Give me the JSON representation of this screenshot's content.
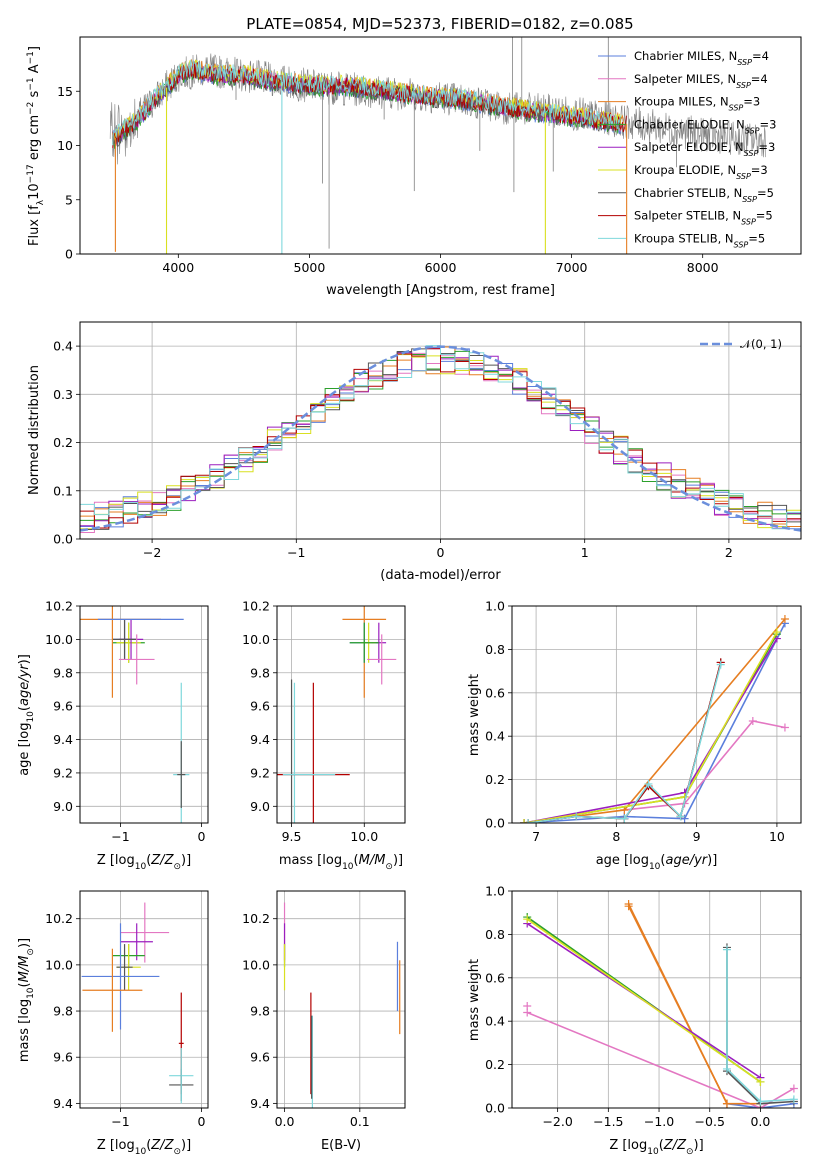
{
  "figure_title": "PLATE=0854, MJD=52373, FIBERID=0182, z=0.085",
  "colors": {
    "chabrier_miles": "#5b7fdc",
    "salpeter_miles": "#e377c2",
    "kroupa_miles": "#e67e22",
    "chabrier_elodie": "#2ca02c",
    "salpeter_elodie": "#9b1fbf",
    "kroupa_elodie": "#d9e021",
    "chabrier_stelib": "#555555",
    "salpeter_stelib": "#b30000",
    "kroupa_stelib": "#7fd8dc",
    "data_gray": "#808080",
    "gaussian": "#6b8fdc"
  },
  "chart_data": [
    {
      "id": "spectrum",
      "type": "line",
      "xlabel": "wavelength [Angstrom, rest frame]",
      "ylabel": "Flux [f_λ10^-17 erg cm^-2 s^-1 A^-1]",
      "xlim": [
        3250,
        8750
      ],
      "ylim": [
        0,
        20
      ],
      "xticks": [
        "4000",
        "5000",
        "6000",
        "7000",
        "8000"
      ],
      "yticks": [
        "0",
        "5",
        "10",
        "15"
      ],
      "legend_position": "top-right",
      "legend": [
        "Chabrier MILES, N_SSP=4",
        "Salpeter MILES, N_SSP=4",
        "Kroupa MILES, N_SSP=3",
        "Chabrier ELODIE, N_SSP=3",
        "Salpeter ELODIE, N_SSP=3",
        "Kroupa ELODIE, N_SSP=3",
        "Chabrier STELIB, N_SSP=5",
        "Salpeter STELIB, N_SSP=5",
        "Kroupa STELIB, N_SSP=5"
      ],
      "continuum": {
        "x": [
          3500,
          3600,
          3700,
          3800,
          3900,
          4000,
          4100,
          4300,
          4500,
          4700,
          5000,
          5300,
          5600,
          5900,
          6200,
          6500,
          6800,
          7100,
          7400
        ],
        "y": [
          10.5,
          11.5,
          12.5,
          14.0,
          15.2,
          16.5,
          17.0,
          16.5,
          16.5,
          16.0,
          15.5,
          15.5,
          15.0,
          14.5,
          14.2,
          13.5,
          13.0,
          12.5,
          12.0
        ]
      },
      "data_continuum": {
        "x": [
          3450,
          3600,
          3800,
          4000,
          4200,
          4500,
          5000,
          5500,
          6000,
          6500,
          7000,
          7500,
          8000,
          8400
        ],
        "y": [
          11.0,
          11.5,
          14.0,
          16.5,
          17.0,
          16.5,
          15.5,
          15.0,
          14.5,
          13.5,
          13.0,
          12.0,
          11.0,
          10.5
        ]
      },
      "absorption_spikes": [
        {
          "x": 3520,
          "y": 0.2
        },
        {
          "x": 3910,
          "y": 0.0
        },
        {
          "x": 4790,
          "y": 0.0
        },
        {
          "x": 6800,
          "y": 0.0
        },
        {
          "x": 7420,
          "y": 0.0
        }
      ],
      "gray_spikes_down": [
        {
          "x": 4440,
          "y": 14.2
        },
        {
          "x": 5100,
          "y": 6.5
        },
        {
          "x": 5150,
          "y": 0.5
        },
        {
          "x": 5570,
          "y": 12.4
        },
        {
          "x": 5800,
          "y": 5.8
        },
        {
          "x": 6300,
          "y": 9.5
        },
        {
          "x": 6560,
          "y": 5.7
        },
        {
          "x": 6860,
          "y": 7.6
        },
        {
          "x": 7330,
          "y": 11.0
        },
        {
          "x": 7800,
          "y": 8.0
        }
      ],
      "gray_spikes_up": [
        {
          "x": 6550,
          "y": 20.0
        },
        {
          "x": 6620,
          "y": 20.0
        },
        {
          "x": 7280,
          "y": 20.0
        }
      ]
    },
    {
      "id": "residuals",
      "type": "line",
      "xlabel": "(data-model)/error",
      "ylabel": "Normed distribution",
      "xlim": [
        -2.5,
        2.5
      ],
      "ylim": [
        0,
        0.45
      ],
      "xticks": [
        "−2",
        "−1",
        "0",
        "1",
        "2"
      ],
      "yticks": [
        "0.0",
        "0.1",
        "0.2",
        "0.3",
        "0.4"
      ],
      "legend": [
        "𝒩(0, 1)"
      ],
      "legend_position": "top-right",
      "bin_width": 0.1,
      "bin_start": -2.5
    },
    {
      "id": "age_vs_Z",
      "type": "scatter",
      "xlabel": "Z [log10(Z/Z⊙)]",
      "ylabel": "age  [log10(age/yr)]",
      "xlim": [
        -1.5,
        0.08
      ],
      "ylim": [
        8.9,
        10.2
      ],
      "xticks": [
        "−1",
        "0"
      ],
      "yticks": [
        "9.0",
        "9.2",
        "9.4",
        "9.6",
        "9.8",
        "10.0",
        "10.2"
      ],
      "errorbars": [
        {
          "x": -0.95,
          "xerr": 0.15,
          "y": 10.0,
          "yerr": 0.12,
          "c": "chabrier_miles"
        },
        {
          "x": -0.9,
          "xerr": 0.2,
          "y": 9.98,
          "yerr": 0.12,
          "c": "chabrier_elodie"
        },
        {
          "x": -0.9,
          "xerr": 0.15,
          "y": 9.98,
          "yerr": 0.12,
          "c": "kroupa_elodie"
        },
        {
          "x": -0.87,
          "xerr": 0.15,
          "y": 10.0,
          "yerr": 0.12,
          "c": "salpeter_elodie"
        },
        {
          "x": -0.95,
          "xerr": 0.15,
          "y": 10.0,
          "yerr": 0.12,
          "c": "chabrier_stelib"
        },
        {
          "x": -1.1,
          "xerr": 0.6,
          "y": 10.12,
          "yerr": 0.47,
          "c": "kroupa_miles"
        },
        {
          "x": -0.75,
          "xerr": 0.53,
          "y": 10.12,
          "yerr": 0.0,
          "c": "chabrier_miles"
        },
        {
          "x": -0.8,
          "xerr": 0.22,
          "y": 9.88,
          "yerr": 0.15,
          "c": "salpeter_miles"
        },
        {
          "x": -0.25,
          "xerr": 0.1,
          "y": 9.19,
          "yerr": 0.55,
          "c": "kroupa_stelib"
        },
        {
          "x": -0.25,
          "xerr": 0.05,
          "y": 9.19,
          "yerr": 0.2,
          "c": "chabrier_stelib"
        }
      ]
    },
    {
      "id": "age_vs_mass",
      "type": "scatter",
      "xlabel": "mass [log10(M/M⊙)]",
      "ylabel": "",
      "xlim": [
        9.4,
        10.28
      ],
      "ylim": [
        8.9,
        10.2
      ],
      "xticks": [
        "9.5",
        "10.0"
      ],
      "yticks": [
        "9.0",
        "9.2",
        "9.4",
        "9.6",
        "9.8",
        "10.0",
        "10.2"
      ],
      "errorbars": [
        {
          "x": 10.0,
          "xerr": 0.15,
          "y": 10.12,
          "yerr": 0.47,
          "c": "kroupa_miles"
        },
        {
          "x": 10.0,
          "xerr": 0.1,
          "y": 9.98,
          "yerr": 0.12,
          "c": "chabrier_miles"
        },
        {
          "x": 10.1,
          "xerr": 0.05,
          "y": 9.98,
          "yerr": 0.12,
          "c": "salpeter_elodie"
        },
        {
          "x": 10.03,
          "xerr": 0.05,
          "y": 9.98,
          "yerr": 0.12,
          "c": "kroupa_elodie"
        },
        {
          "x": 10.0,
          "xerr": 0.1,
          "y": 9.98,
          "yerr": 0.12,
          "c": "chabrier_elodie"
        },
        {
          "x": 10.12,
          "xerr": 0.1,
          "y": 9.88,
          "yerr": 0.15,
          "c": "salpeter_miles"
        },
        {
          "x": 9.5,
          "xerr": 0.0,
          "y": 9.19,
          "yerr": 0.57,
          "c": "chabrier_stelib"
        },
        {
          "x": 9.52,
          "xerr": 0.0,
          "y": 9.19,
          "yerr": 0.55,
          "c": "kroupa_stelib"
        },
        {
          "x": 9.65,
          "xerr": 0.25,
          "y": 9.19,
          "yerr": 0.55,
          "c": "salpeter_stelib"
        },
        {
          "x": 9.62,
          "xerr": 0.18,
          "y": 9.19,
          "yerr": 0.0,
          "c": "kroupa_stelib"
        }
      ]
    },
    {
      "id": "massweight_vs_age",
      "type": "line",
      "xlabel": "age  [log10(age/yr)]",
      "ylabel": "mass weight",
      "xlim": [
        6.7,
        10.3
      ],
      "ylim": [
        0,
        1
      ],
      "xticks": [
        "7",
        "8",
        "9",
        "10"
      ],
      "yticks": [
        "0.0",
        "0.2",
        "0.4",
        "0.6",
        "0.8",
        "1.0"
      ],
      "series": [
        {
          "c": "chabrier_miles",
          "x": [
            6.85,
            8.1,
            8.85,
            10.1
          ],
          "y": [
            0.0,
            0.03,
            0.02,
            0.92
          ]
        },
        {
          "c": "salpeter_miles",
          "x": [
            8.1,
            8.85,
            9.7,
            10.1
          ],
          "y": [
            0.06,
            0.09,
            0.47,
            0.44
          ]
        },
        {
          "c": "kroupa_miles",
          "x": [
            6.85,
            8.1,
            10.1
          ],
          "y": [
            0.0,
            0.06,
            0.94
          ]
        },
        {
          "c": "chabrier_elodie",
          "x": [
            6.85,
            8.85,
            10.0
          ],
          "y": [
            0.0,
            0.12,
            0.87
          ]
        },
        {
          "c": "salpeter_elodie",
          "x": [
            6.85,
            8.85,
            10.0
          ],
          "y": [
            0.0,
            0.14,
            0.85
          ]
        },
        {
          "c": "kroupa_elodie",
          "x": [
            6.85,
            8.85,
            10.0
          ],
          "y": [
            0.0,
            0.12,
            0.88
          ]
        },
        {
          "c": "chabrier_stelib",
          "x": [
            6.9,
            7.5,
            8.1,
            8.4,
            8.8,
            9.3
          ],
          "y": [
            0.0,
            0.03,
            0.02,
            0.17,
            0.03,
            0.74
          ]
        },
        {
          "c": "salpeter_stelib",
          "x": [
            6.9,
            7.5,
            8.1,
            8.4,
            8.8,
            9.3
          ],
          "y": [
            0.0,
            0.03,
            0.02,
            0.17,
            0.03,
            0.74
          ]
        },
        {
          "c": "kroupa_stelib",
          "x": [
            6.9,
            7.5,
            8.1,
            8.4,
            8.8,
            9.3
          ],
          "y": [
            0.0,
            0.03,
            0.02,
            0.18,
            0.03,
            0.73
          ]
        }
      ]
    },
    {
      "id": "mass_vs_Z",
      "type": "scatter",
      "xlabel": "Z [log10(Z/Z⊙)]",
      "ylabel": "mass [log10(M/M⊙)]",
      "xlim": [
        -1.5,
        0.08
      ],
      "ylim": [
        9.38,
        10.32
      ],
      "xticks": [
        "−1",
        "0"
      ],
      "yticks": [
        "9.4",
        "9.6",
        "9.8",
        "10.0",
        "10.2"
      ],
      "errorbars": [
        {
          "x": -0.7,
          "xerr": 0.3,
          "y": 10.14,
          "yerr": 0.13,
          "c": "salpeter_miles"
        },
        {
          "x": -0.8,
          "xerr": 0.2,
          "y": 10.1,
          "yerr": 0.08,
          "c": "salpeter_elodie"
        },
        {
          "x": -0.9,
          "xerr": 0.2,
          "y": 10.04,
          "yerr": 0.05,
          "c": "chabrier_elodie"
        },
        {
          "x": -0.9,
          "xerr": 0.15,
          "y": 9.99,
          "yerr": 0.1,
          "c": "kroupa_elodie"
        },
        {
          "x": -0.95,
          "xerr": 0.1,
          "y": 9.99,
          "yerr": 0.1,
          "c": "chabrier_stelib"
        },
        {
          "x": -1.0,
          "xerr": 0.48,
          "y": 9.95,
          "yerr": 0.23,
          "c": "chabrier_miles"
        },
        {
          "x": -1.1,
          "xerr": 0.37,
          "y": 9.89,
          "yerr": 0.18,
          "c": "kroupa_miles"
        },
        {
          "x": -0.25,
          "xerr": 0.03,
          "y": 9.66,
          "yerr": 0.22,
          "c": "salpeter_stelib"
        },
        {
          "x": -0.25,
          "xerr": 0.15,
          "y": 9.52,
          "yerr": 0.0,
          "c": "kroupa_stelib"
        },
        {
          "x": -0.25,
          "xerr": 0.15,
          "y": 9.48,
          "yerr": 0.07,
          "c": "chabrier_stelib"
        },
        {
          "x": -0.25,
          "xerr": 0.0,
          "y": 9.52,
          "yerr": 0.12,
          "c": "kroupa_stelib"
        }
      ]
    },
    {
      "id": "mass_vs_EBV",
      "type": "scatter",
      "xlabel": "E(B-V)",
      "ylabel": "",
      "xlim": [
        -0.01,
        0.16
      ],
      "ylim": [
        9.38,
        10.32
      ],
      "xticks": [
        "0.0",
        "0.1"
      ],
      "yticks": [
        "9.4",
        "9.6",
        "9.8",
        "10.0",
        "10.2"
      ],
      "errorbars": [
        {
          "x": 0.0,
          "xerr": 0,
          "y": 10.14,
          "yerr": 0.13,
          "c": "salpeter_miles"
        },
        {
          "x": 0.0,
          "xerr": 0,
          "y": 10.1,
          "yerr": 0.08,
          "c": "salpeter_elodie"
        },
        {
          "x": 0.0,
          "xerr": 0,
          "y": 10.04,
          "yerr": 0.05,
          "c": "chabrier_elodie"
        },
        {
          "x": 0.0,
          "xerr": 0,
          "y": 9.99,
          "yerr": 0.1,
          "c": "kroupa_elodie"
        },
        {
          "x": 0.035,
          "xerr": 0,
          "y": 9.66,
          "yerr": 0.22,
          "c": "salpeter_stelib"
        },
        {
          "x": 0.037,
          "xerr": 0,
          "y": 9.58,
          "yerr": 0.2,
          "c": "kroupa_stelib"
        },
        {
          "x": 0.036,
          "xerr": 0,
          "y": 9.6,
          "yerr": 0.18,
          "c": "chabrier_stelib"
        },
        {
          "x": 0.15,
          "xerr": 0,
          "y": 9.95,
          "yerr": 0.15,
          "c": "chabrier_miles"
        },
        {
          "x": 0.153,
          "xerr": 0,
          "y": 9.86,
          "yerr": 0.16,
          "c": "kroupa_miles"
        }
      ]
    },
    {
      "id": "massweight_vs_Z",
      "type": "line",
      "xlabel": "Z [log10(Z/Z⊙)]",
      "ylabel": "mass weight",
      "xlim": [
        -2.45,
        0.4
      ],
      "ylim": [
        0,
        1
      ],
      "xticks": [
        "−2.0",
        "−1.5",
        "−1.0",
        "−0.5",
        "0.0"
      ],
      "yticks": [
        "0.0",
        "0.2",
        "0.4",
        "0.6",
        "0.8",
        "1.0"
      ],
      "series": [
        {
          "c": "chabrier_miles",
          "x": [
            -0.33,
            0.0,
            0.33
          ],
          "y": [
            0.02,
            0.0,
            0.02
          ]
        },
        {
          "c": "salpeter_miles",
          "x": [
            -2.3,
            0.0,
            0.33
          ],
          "y": [
            0.44,
            0.0,
            0.09
          ]
        },
        {
          "c": "salpeter_miles",
          "x": [
            -2.3
          ],
          "y": [
            0.47
          ]
        },
        {
          "c": "kroupa_miles",
          "x": [
            -1.3,
            -0.33,
            0.0
          ],
          "y": [
            0.94,
            0.02,
            0.02
          ]
        },
        {
          "c": "kroupa_miles",
          "x": [
            -1.3,
            -0.33
          ],
          "y": [
            0.93,
            0.02
          ]
        },
        {
          "c": "chabrier_elodie",
          "x": [
            -2.3,
            0.0
          ],
          "y": [
            0.88,
            0.12
          ]
        },
        {
          "c": "salpeter_elodie",
          "x": [
            -2.3,
            0.0
          ],
          "y": [
            0.85,
            0.14
          ]
        },
        {
          "c": "kroupa_elodie",
          "x": [
            -2.3,
            0.0
          ],
          "y": [
            0.87,
            0.12
          ]
        },
        {
          "c": "chabrier_stelib",
          "x": [
            -0.33,
            -0.33,
            0.0,
            0.33
          ],
          "y": [
            0.74,
            0.17,
            0.02,
            0.03
          ]
        },
        {
          "c": "kroupa_stelib",
          "x": [
            -0.33,
            -0.33,
            0.0,
            0.33
          ],
          "y": [
            0.73,
            0.18,
            0.03,
            0.04
          ]
        }
      ]
    }
  ]
}
